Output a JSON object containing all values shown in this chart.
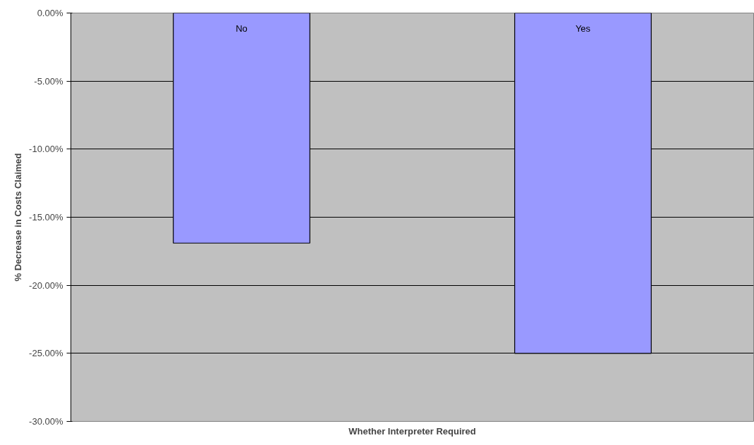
{
  "chart_data": {
    "type": "bar",
    "xlabel": "Whether Interpreter Required",
    "ylabel": "% Decrease in Costs Claimed",
    "categories": [
      "No",
      "Yes"
    ],
    "values": [
      -16.9,
      -25.0
    ],
    "color": "#9999ff",
    "ylim": [
      -30,
      0
    ],
    "yticks": [
      {
        "value": 0,
        "label": "0.00%"
      },
      {
        "value": -5,
        "label": "-5.00%"
      },
      {
        "value": -10,
        "label": "-10.00%"
      },
      {
        "value": -15,
        "label": "-15.00%"
      },
      {
        "value": -20,
        "label": "-20.00%"
      },
      {
        "value": -25,
        "label": "-25.00%"
      },
      {
        "value": -30,
        "label": "-30.00%"
      }
    ],
    "grid": "y",
    "legend": false
  }
}
